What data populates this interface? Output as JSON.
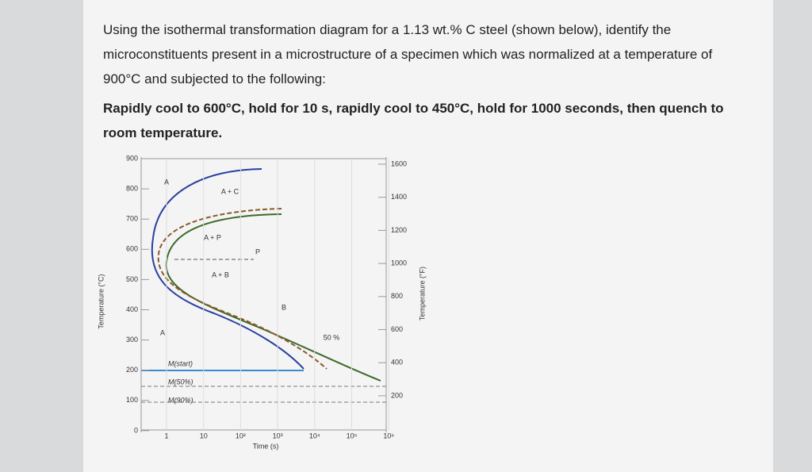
{
  "question": {
    "intro": "Using the isothermal transformation diagram for a 1.13 wt.% C steel (shown below), identify the microconstituents present in a microstructure of a specimen which was normalized at a temperature of 900°C and subjected to the following:",
    "task": "Rapidly cool to 600°C, hold for 10 s, rapidly cool to 450°C, hold for 1000 seconds, then quench to room temperature."
  },
  "diagram": {
    "y_axis_label": "Temperature (°C)",
    "y2_axis_label": "Temperature (°F)",
    "x_axis_label": "Time (s)",
    "yticks": [
      "900",
      "800",
      "700",
      "600",
      "500",
      "400",
      "300",
      "200",
      "100",
      "0"
    ],
    "y2ticks": [
      "1600",
      "1400",
      "1200",
      "1000",
      "800",
      "600",
      "400",
      "200"
    ],
    "xticks": [
      "1",
      "10",
      "10²",
      "10³",
      "10⁴",
      "10⁵",
      "10⁶"
    ],
    "region_labels": [
      "A",
      "A + C",
      "A + P",
      "P",
      "A + B",
      "B",
      "A",
      "50 %"
    ],
    "m_labels": [
      "M(start)",
      "M(50%)",
      "M(90%)"
    ]
  }
}
